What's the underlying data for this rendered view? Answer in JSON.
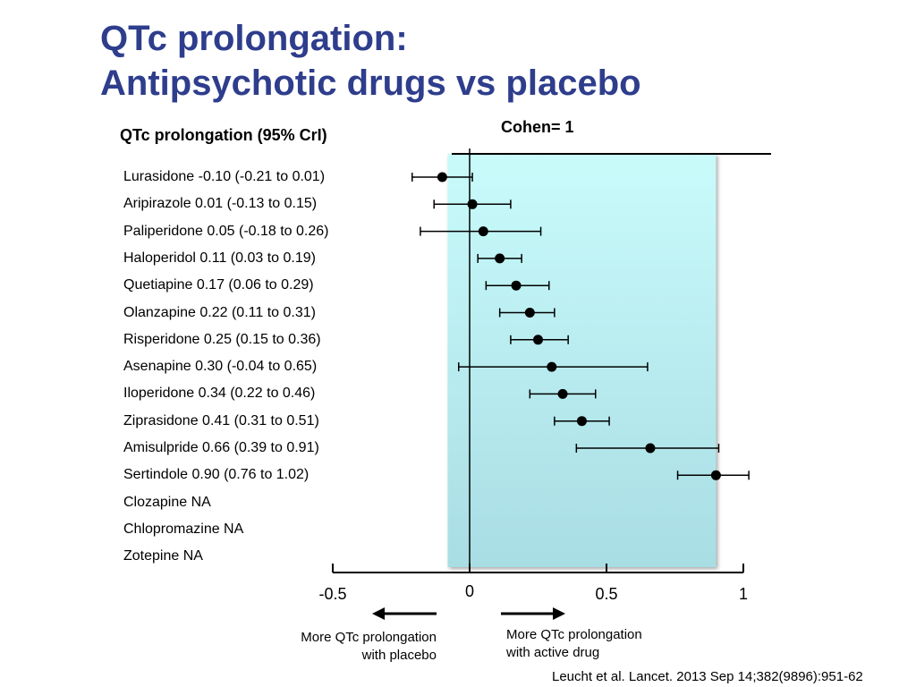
{
  "title_line1": "QTc prolongation:",
  "title_line2": "Antipsychotic drugs vs placebo",
  "column_header": "QTc prolongation (95% CrI)",
  "cohen_label": "Cohen= 1",
  "note_left_line1": "More QTc prolongation",
  "note_left_line2": "with placebo",
  "note_right_line1": "More QTc prolongation",
  "note_right_line2": "with active drug",
  "citation": "Leucht et al. Lancet. 2013 Sep 14;382(9896):951-62",
  "colors": {
    "title": "#2e3d8c",
    "band_top": "#c9fbfb",
    "band_bottom": "#a8dde4"
  },
  "chart_data": {
    "type": "scatter",
    "title": "",
    "xlabel": "",
    "ylabel": "",
    "xlim": [
      -0.5,
      1
    ],
    "ticks": [
      {
        "value": -0.5,
        "label": "-0.5"
      },
      {
        "value": 0,
        "label": "0"
      },
      {
        "value": 0.5,
        "label": "0.5"
      },
      {
        "value": 1,
        "label": "1"
      }
    ],
    "shaded_band": [
      -0.08,
      0.9
    ],
    "reference_line": 0,
    "rows": [
      {
        "label": "Lurasidone -0.10 (-0.21 to 0.01)",
        "estimate": -0.1,
        "lower": -0.21,
        "upper": 0.01
      },
      {
        "label": "Aripirazole 0.01 (-0.13 to 0.15)",
        "estimate": 0.01,
        "lower": -0.13,
        "upper": 0.15
      },
      {
        "label": "Paliperidone 0.05 (-0.18 to 0.26)",
        "estimate": 0.05,
        "lower": -0.18,
        "upper": 0.26
      },
      {
        "label": "Haloperidol 0.11 (0.03 to 0.19)",
        "estimate": 0.11,
        "lower": 0.03,
        "upper": 0.19
      },
      {
        "label": "Quetiapine 0.17 (0.06 to 0.29)",
        "estimate": 0.17,
        "lower": 0.06,
        "upper": 0.29
      },
      {
        "label": "Olanzapine 0.22 (0.11 to 0.31)",
        "estimate": 0.22,
        "lower": 0.11,
        "upper": 0.31
      },
      {
        "label": "Risperidone 0.25 (0.15 to 0.36)",
        "estimate": 0.25,
        "lower": 0.15,
        "upper": 0.36
      },
      {
        "label": "Asenapine 0.30 (-0.04 to 0.65)",
        "estimate": 0.3,
        "lower": -0.04,
        "upper": 0.65
      },
      {
        "label": "Iloperidone 0.34 (0.22 to 0.46)",
        "estimate": 0.34,
        "lower": 0.22,
        "upper": 0.46
      },
      {
        "label": "Ziprasidone 0.41 (0.31 to 0.51)",
        "estimate": 0.41,
        "lower": 0.31,
        "upper": 0.51
      },
      {
        "label": "Amisulpride 0.66 (0.39 to 0.91)",
        "estimate": 0.66,
        "lower": 0.39,
        "upper": 0.91
      },
      {
        "label": "Sertindole 0.90 (0.76 to 1.02)",
        "estimate": 0.9,
        "lower": 0.76,
        "upper": 1.02
      },
      {
        "label": "Clozapine NA",
        "estimate": null,
        "lower": null,
        "upper": null
      },
      {
        "label": "Chlopromazine NA",
        "estimate": null,
        "lower": null,
        "upper": null
      },
      {
        "label": "Zotepine NA",
        "estimate": null,
        "lower": null,
        "upper": null
      }
    ]
  }
}
